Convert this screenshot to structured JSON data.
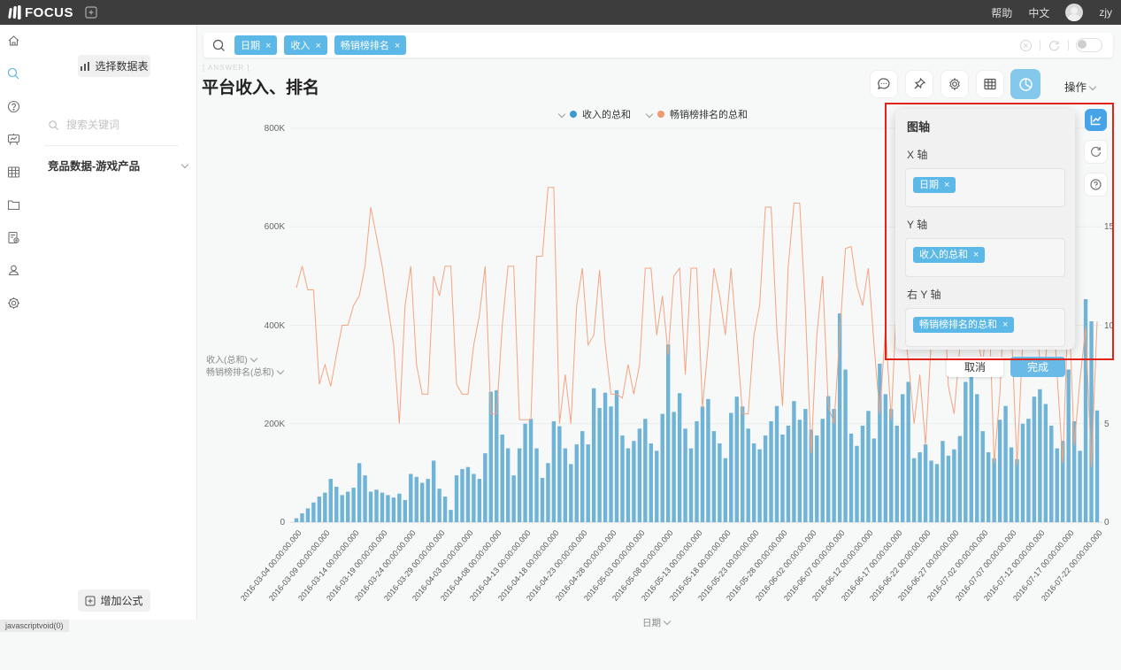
{
  "topbar": {
    "brand": "FOCUS",
    "help": "帮助",
    "lang": "中文",
    "user": "zjy"
  },
  "sidebar": {
    "items": [
      "home",
      "search",
      "help",
      "dashboard",
      "table",
      "folder",
      "report",
      "user",
      "settings"
    ]
  },
  "left_panel": {
    "select_table": "选择数据表",
    "search_placeholder": "搜索关键词",
    "dataset": "竞品数据-游戏产品",
    "add_formula": "增加公式"
  },
  "search_bar": {
    "tags": [
      {
        "label": "日期"
      },
      {
        "label": "收入"
      },
      {
        "label": "畅销榜排名"
      }
    ]
  },
  "header": {
    "answer_label": "[ ANSWER ]",
    "title": "平台收入、排名",
    "action": "操作"
  },
  "toolbar": {
    "icons": [
      "comment",
      "pin",
      "gear",
      "table",
      "pie-chart"
    ]
  },
  "axis_panel": {
    "title": "图轴",
    "x_label": "X 轴",
    "x_tag": "日期",
    "y_label": "Y 轴",
    "y_tag": "收入的总和",
    "ry_label": "右 Y 轴",
    "ry_tag": "畅销榜排名的总和",
    "cancel": "取消",
    "done": "完成"
  },
  "status_bar": {
    "text": "javascriptvoid(0)"
  },
  "chart_data": {
    "type": "bar",
    "title": "平台收入、排名",
    "xlabel": "日期",
    "x_tick_labels": [
      "2016-03-04 00:00:00.000",
      "2016-03-09 00:00:00.000",
      "2016-03-14 00:00:00.000",
      "2016-03-19 00:00:00.000",
      "2016-03-24 00:00:00.000",
      "2016-03-29 00:00:00.000",
      "2016-04-03 00:00:00.000",
      "2016-04-08 00:00:00.000",
      "2016-04-13 00:00:00.000",
      "2016-04-18 00:00:00.000",
      "2016-04-23 00:00:00.000",
      "2016-04-28 00:00:00.000",
      "2016-05-03 00:00:00.000",
      "2016-05-08 00:00:00.000",
      "2016-05-13 00:00:00.000",
      "2016-05-18 00:00:00.000",
      "2016-05-23 00:00:00.000",
      "2016-05-28 00:00:00.000",
      "2016-06-02 00:00:00.000",
      "2016-06-07 00:00:00.000",
      "2016-06-12 00:00:00.000",
      "2016-06-17 00:00:00.000",
      "2016-06-22 00:00:00.000",
      "2016-06-27 00:00:00.000",
      "2016-07-02 00:00:00.000",
      "2016-07-07 00:00:00.000",
      "2016-07-12 00:00:00.000",
      "2016-07-17 00:00:00.000",
      "2016-07-22 00:00:00.000"
    ],
    "x_tick_every_days": 5,
    "left_axis": {
      "ticks": [
        "800K",
        "600K",
        "400K",
        "200K",
        "0"
      ],
      "max_k": 800,
      "unit": "K"
    },
    "right_axis": {
      "ticks": [
        "15",
        "10",
        "5",
        "0"
      ],
      "max": 20
    },
    "axis_title_left": [
      "收入(总和)",
      "畅销榜排名(总和)"
    ],
    "legend": [
      {
        "label": "收入的总和",
        "color": "#3d9ad1"
      },
      {
        "label": "畅销榜排名的总和",
        "color": "#f09a73"
      }
    ],
    "series": [
      {
        "name": "收入的总和",
        "type": "bar",
        "axis": "left",
        "color": "#6fb3d6",
        "unit": "K",
        "values": [
          8,
          18,
          28,
          40,
          52,
          60,
          88,
          72,
          55,
          62,
          70,
          120,
          95,
          62,
          66,
          60,
          55,
          50,
          58,
          45,
          98,
          92,
          80,
          88,
          125,
          68,
          52,
          25,
          95,
          108,
          112,
          98,
          88,
          140,
          265,
          268,
          178,
          150,
          95,
          150,
          200,
          210,
          150,
          90,
          120,
          205,
          195,
          150,
          118,
          158,
          185,
          158,
          272,
          232,
          263,
          235,
          268,
          176,
          150,
          165,
          190,
          210,
          160,
          145,
          220,
          361,
          224,
          262,
          190,
          150,
          205,
          235,
          250,
          185,
          160,
          130,
          222,
          255,
          235,
          190,
          160,
          148,
          176,
          205,
          236,
          178,
          196,
          246,
          208,
          230,
          188,
          176,
          210,
          256,
          230,
          424,
          310,
          180,
          155,
          196,
          226,
          170,
          322,
          260,
          230,
          196,
          260,
          285,
          130,
          142,
          158,
          125,
          118,
          165,
          135,
          148,
          175,
          285,
          335,
          260,
          185,
          142,
          130,
          208,
          236,
          152,
          128,
          200,
          210,
          255,
          270,
          240,
          196,
          150,
          165,
          310,
          205,
          145,
          453,
          408,
          227
        ]
      },
      {
        "name": "畅销榜排名的总和",
        "type": "line",
        "axis": "right",
        "color": "#f4a481",
        "values": [
          11.9,
          13,
          11.8,
          11.8,
          7,
          8,
          6.9,
          8.5,
          10,
          10,
          11,
          11.5,
          13,
          16,
          14.5,
          13,
          11,
          9,
          5,
          11,
          13,
          8,
          6.5,
          6.5,
          12.5,
          11.5,
          13,
          13,
          7,
          6.5,
          6.5,
          9,
          10.5,
          13,
          5.5,
          5.5,
          10,
          13,
          13,
          5.2,
          5.2,
          5.2,
          13.5,
          13.5,
          17,
          17,
          5,
          7.5,
          5,
          11,
          12.9,
          9,
          9.5,
          12.8,
          9,
          6.5,
          6.5,
          6.3,
          8,
          6.5,
          8,
          12.9,
          12.9,
          9.5,
          11.5,
          8.5,
          12.5,
          12.9,
          7.5,
          12.9,
          12.9,
          5.8,
          9,
          12.9,
          11.5,
          9.5,
          12.9,
          9.3,
          5.5,
          5.5,
          9.5,
          11,
          16,
          16,
          9.8,
          5.9,
          13,
          16.2,
          16.2,
          10.8,
          3.5,
          9.5,
          12.5,
          5.9,
          5,
          9.5,
          13.9,
          14,
          12,
          11,
          12.9,
          9,
          5.5,
          9.9,
          5.2,
          11.5,
          10.5,
          8.2,
          5,
          7.5,
          3.9,
          9.2,
          10.5,
          12.9,
          6.9,
          5.5,
          8.9,
          12.9,
          12.9,
          9.5,
          7.9,
          11.9,
          3,
          6.5,
          12.9,
          9.9,
          2.9,
          9.2,
          12.9,
          12.9,
          7.9,
          8.2,
          12.9,
          7.5,
          3,
          11.5,
          3.9,
          7.2,
          9.9,
          2.8,
          10.2
        ]
      }
    ]
  }
}
